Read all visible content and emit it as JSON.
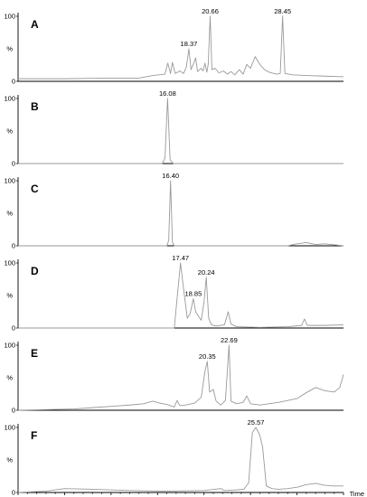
{
  "chart_data": {
    "type": "line",
    "layout": "stacked-panels",
    "xlabel": "Time",
    "xlim": [
      0,
      35
    ],
    "x_ticks": [
      "0.00",
      "5.00",
      "10.00",
      "15.00",
      "20.00",
      "25.00",
      "30.00",
      "35.00"
    ],
    "ylim": [
      0,
      100
    ],
    "y_ticks": [
      "0",
      "100"
    ],
    "y_unit_label": "%",
    "panels": [
      {
        "label": "A",
        "peaks": [
          {
            "x": 18.37,
            "y": 50,
            "label": "18.37"
          },
          {
            "x": 20.66,
            "y": 100,
            "label": "20.66"
          },
          {
            "x": 28.45,
            "y": 100,
            "label": "28.45"
          }
        ],
        "trace": [
          [
            0,
            4
          ],
          [
            5,
            4
          ],
          [
            10,
            5
          ],
          [
            13,
            5
          ],
          [
            14.5,
            9
          ],
          [
            15.8,
            11
          ],
          [
            16.1,
            28
          ],
          [
            16.4,
            12
          ],
          [
            16.6,
            29
          ],
          [
            16.9,
            12
          ],
          [
            17.4,
            16
          ],
          [
            17.8,
            12
          ],
          [
            18.1,
            22
          ],
          [
            18.37,
            50
          ],
          [
            18.6,
            18
          ],
          [
            18.9,
            28
          ],
          [
            19.1,
            36
          ],
          [
            19.3,
            15
          ],
          [
            19.7,
            20
          ],
          [
            19.9,
            16
          ],
          [
            20.1,
            28
          ],
          [
            20.3,
            14
          ],
          [
            20.45,
            26
          ],
          [
            20.66,
            100
          ],
          [
            20.85,
            18
          ],
          [
            21.2,
            20
          ],
          [
            21.6,
            13
          ],
          [
            22.1,
            16
          ],
          [
            22.5,
            11
          ],
          [
            22.9,
            15
          ],
          [
            23.3,
            10
          ],
          [
            23.8,
            18
          ],
          [
            24.2,
            11
          ],
          [
            24.6,
            26
          ],
          [
            25,
            20
          ],
          [
            25.5,
            38
          ],
          [
            26,
            26
          ],
          [
            26.5,
            18
          ],
          [
            27,
            14
          ],
          [
            27.8,
            11
          ],
          [
            28.2,
            12
          ],
          [
            28.45,
            100
          ],
          [
            28.7,
            12
          ],
          [
            29.5,
            10
          ],
          [
            31,
            9
          ],
          [
            33,
            8
          ],
          [
            35,
            7
          ]
        ]
      },
      {
        "label": "B",
        "peaks": [
          {
            "x": 16.08,
            "y": 100,
            "label": "16.08"
          }
        ],
        "trace": [
          [
            0,
            0
          ],
          [
            15.5,
            0
          ],
          [
            15.8,
            8
          ],
          [
            16.08,
            100
          ],
          [
            16.35,
            6
          ],
          [
            16.7,
            0
          ],
          [
            35,
            0
          ]
        ]
      },
      {
        "label": "C",
        "peaks": [
          {
            "x": 16.4,
            "y": 100,
            "label": "16.40"
          }
        ],
        "trace": [
          [
            0,
            0
          ],
          [
            16,
            0
          ],
          [
            16.2,
            8
          ],
          [
            16.4,
            100
          ],
          [
            16.6,
            5
          ],
          [
            16.8,
            0
          ],
          [
            29,
            0
          ],
          [
            30,
            3
          ],
          [
            31,
            5
          ],
          [
            32,
            2
          ],
          [
            33,
            3
          ],
          [
            35,
            0
          ]
        ]
      },
      {
        "label": "D",
        "peaks": [
          {
            "x": 17.47,
            "y": 100,
            "label": "17.47"
          },
          {
            "x": 18.85,
            "y": 45,
            "label": "18.85"
          },
          {
            "x": 20.24,
            "y": 78,
            "label": "20.24"
          }
        ],
        "trace": [
          [
            0,
            0
          ],
          [
            16.8,
            0
          ],
          [
            17.1,
            45
          ],
          [
            17.47,
            100
          ],
          [
            17.8,
            60
          ],
          [
            18.2,
            15
          ],
          [
            18.5,
            22
          ],
          [
            18.85,
            45
          ],
          [
            19.1,
            25
          ],
          [
            19.4,
            18
          ],
          [
            19.7,
            12
          ],
          [
            20.0,
            40
          ],
          [
            20.24,
            78
          ],
          [
            20.5,
            15
          ],
          [
            20.8,
            5
          ],
          [
            21.3,
            3
          ],
          [
            22.2,
            5
          ],
          [
            22.6,
            25
          ],
          [
            22.9,
            6
          ],
          [
            23.5,
            2
          ],
          [
            26,
            1
          ],
          [
            29,
            2
          ],
          [
            30.5,
            4
          ],
          [
            30.8,
            14
          ],
          [
            31.1,
            4
          ],
          [
            33,
            4
          ],
          [
            35,
            5
          ]
        ]
      },
      {
        "label": "E",
        "peaks": [
          {
            "x": 20.35,
            "y": 75,
            "label": "20.35"
          },
          {
            "x": 22.69,
            "y": 100,
            "label": "22.69"
          }
        ],
        "trace": [
          [
            0,
            0
          ],
          [
            3,
            1
          ],
          [
            6,
            2
          ],
          [
            8,
            4
          ],
          [
            10,
            6
          ],
          [
            12,
            8
          ],
          [
            13.5,
            10
          ],
          [
            14.5,
            14
          ],
          [
            15.2,
            11
          ],
          [
            16,
            9
          ],
          [
            16.8,
            5
          ],
          [
            17.1,
            15
          ],
          [
            17.4,
            7
          ],
          [
            18,
            8
          ],
          [
            19,
            11
          ],
          [
            19.7,
            20
          ],
          [
            20.1,
            60
          ],
          [
            20.35,
            75
          ],
          [
            20.6,
            28
          ],
          [
            21,
            32
          ],
          [
            21.3,
            14
          ],
          [
            21.8,
            8
          ],
          [
            22.3,
            15
          ],
          [
            22.69,
            100
          ],
          [
            22.9,
            14
          ],
          [
            23.5,
            10
          ],
          [
            24.2,
            12
          ],
          [
            24.6,
            22
          ],
          [
            25,
            10
          ],
          [
            26,
            8
          ],
          [
            28,
            12
          ],
          [
            30,
            18
          ],
          [
            31,
            27
          ],
          [
            32,
            35
          ],
          [
            33,
            30
          ],
          [
            34,
            28
          ],
          [
            34.6,
            35
          ],
          [
            35,
            55
          ]
        ]
      },
      {
        "label": "F",
        "peaks": [
          {
            "x": 25.57,
            "y": 100,
            "label": "25.57"
          }
        ],
        "trace": [
          [
            0,
            0
          ],
          [
            3,
            2
          ],
          [
            5,
            6
          ],
          [
            8,
            5
          ],
          [
            12,
            3
          ],
          [
            16,
            2
          ],
          [
            20,
            3
          ],
          [
            21.8,
            6
          ],
          [
            22.2,
            3
          ],
          [
            23.5,
            4
          ],
          [
            24.3,
            5
          ],
          [
            24.8,
            15
          ],
          [
            25.2,
            92
          ],
          [
            25.57,
            100
          ],
          [
            26,
            88
          ],
          [
            26.3,
            70
          ],
          [
            26.7,
            10
          ],
          [
            27.3,
            6
          ],
          [
            28,
            5
          ],
          [
            29,
            6
          ],
          [
            30,
            8
          ],
          [
            31,
            12
          ],
          [
            32,
            14
          ],
          [
            33,
            11
          ],
          [
            34,
            10
          ],
          [
            35,
            10
          ]
        ]
      }
    ]
  }
}
